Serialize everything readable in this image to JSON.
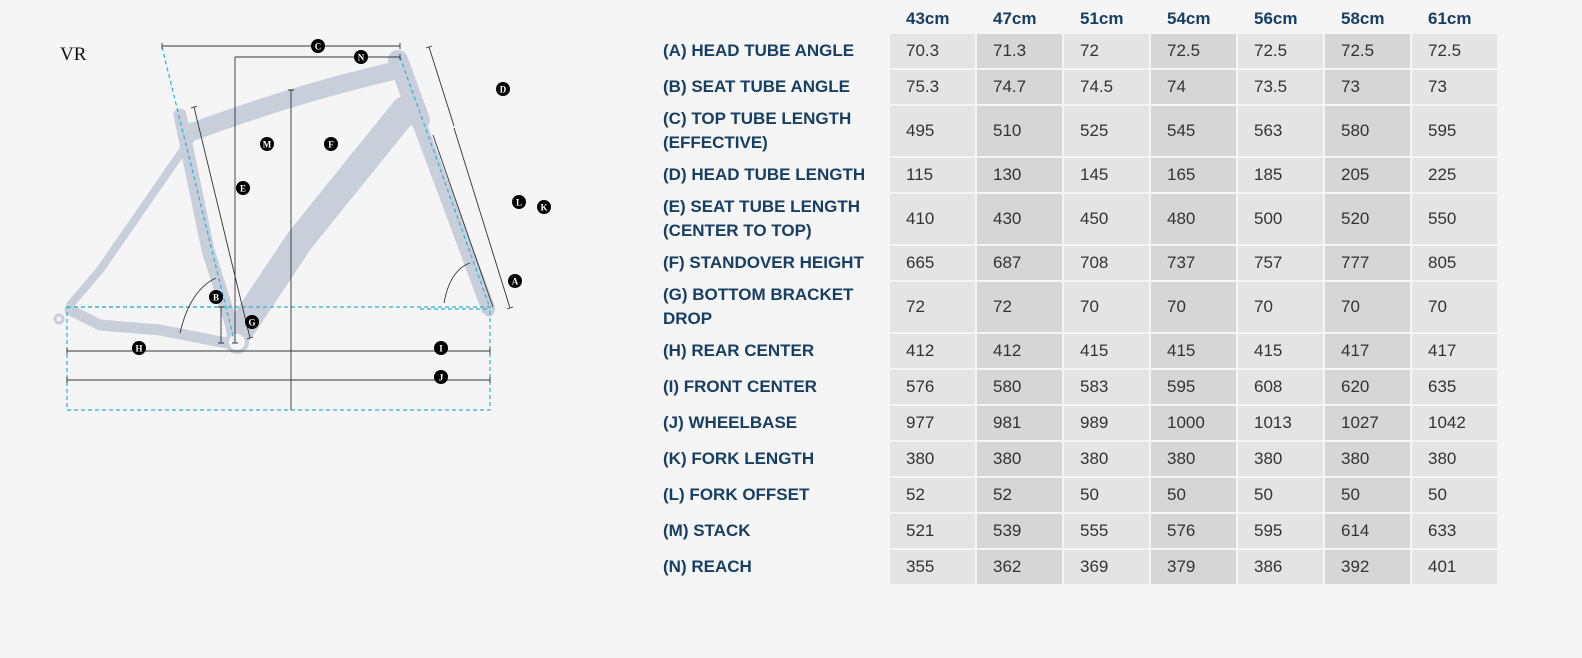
{
  "diagram": {
    "model": "VR",
    "badges": {
      "A": "A",
      "B": "B",
      "C": "C",
      "D": "D",
      "E": "E",
      "F": "F",
      "G": "G",
      "H": "H",
      "I": "I",
      "J": "J",
      "K": "K",
      "L": "L",
      "M": "M",
      "N": "N"
    },
    "frame_color": "#c8cfda",
    "guide_color": "#29b3d6"
  },
  "table": {
    "sizes": [
      "43cm",
      "47cm",
      "51cm",
      "54cm",
      "56cm",
      "58cm",
      "61cm"
    ],
    "rows": [
      {
        "label": "(A) HEAD TUBE ANGLE",
        "values": [
          "70.3",
          "71.3",
          "72",
          "72.5",
          "72.5",
          "72.5",
          "72.5"
        ]
      },
      {
        "label": "(B) SEAT TUBE ANGLE",
        "values": [
          "75.3",
          "74.7",
          "74.5",
          "74",
          "73.5",
          "73",
          "73"
        ]
      },
      {
        "label": "(C) TOP TUBE LENGTH (EFFECTIVE)",
        "values": [
          "495",
          "510",
          "525",
          "545",
          "563",
          "580",
          "595"
        ]
      },
      {
        "label": "(D) HEAD TUBE LENGTH",
        "values": [
          "115",
          "130",
          "145",
          "165",
          "185",
          "205",
          "225"
        ]
      },
      {
        "label": "(E) SEAT TUBE LENGTH (CENTER TO TOP)",
        "values": [
          "410",
          "430",
          "450",
          "480",
          "500",
          "520",
          "550"
        ]
      },
      {
        "label": "(F) STANDOVER HEIGHT",
        "values": [
          "665",
          "687",
          "708",
          "737",
          "757",
          "777",
          "805"
        ]
      },
      {
        "label": "(G) BOTTOM BRACKET DROP",
        "values": [
          "72",
          "72",
          "70",
          "70",
          "70",
          "70",
          "70"
        ]
      },
      {
        "label": "(H) REAR CENTER",
        "values": [
          "412",
          "412",
          "415",
          "415",
          "415",
          "417",
          "417"
        ]
      },
      {
        "label": "(I) FRONT CENTER",
        "values": [
          "576",
          "580",
          "583",
          "595",
          "608",
          "620",
          "635"
        ]
      },
      {
        "label": "(J) WHEELBASE",
        "values": [
          "977",
          "981",
          "989",
          "1000",
          "1013",
          "1027",
          "1042"
        ]
      },
      {
        "label": "(K) FORK LENGTH",
        "values": [
          "380",
          "380",
          "380",
          "380",
          "380",
          "380",
          "380"
        ]
      },
      {
        "label": "(L) FORK OFFSET",
        "values": [
          "52",
          "52",
          "50",
          "50",
          "50",
          "50",
          "50"
        ]
      },
      {
        "label": "(M) STACK",
        "values": [
          "521",
          "539",
          "555",
          "576",
          "595",
          "614",
          "633"
        ]
      },
      {
        "label": "(N) REACH",
        "values": [
          "355",
          "362",
          "369",
          "379",
          "386",
          "392",
          "401"
        ]
      }
    ]
  }
}
